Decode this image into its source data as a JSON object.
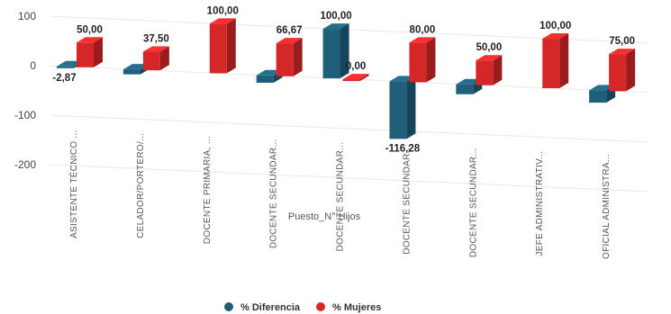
{
  "chart_data": {
    "type": "bar",
    "title": "",
    "xlabel": "Puesto_N° Hijos",
    "ylabel": "",
    "ylim": [
      -200,
      200
    ],
    "yticks": [
      200,
      100,
      0,
      -100,
      -200
    ],
    "grid": false,
    "legend_position": "bottom",
    "categories": [
      "ASISTENTE TÉCNICO ...",
      "CELADOR/PORTERO/...",
      "DOCENTE PRIMARIA, ...",
      "DOCENTE SECUNDAR...",
      "DOCENTE SECUNDAR...",
      "DOCENTE SECUNDAR...",
      "DOCENTE SECUNDAR...",
      "JEFE ADMINISTRATIV...",
      "OFICIAL ADMINISTRA..."
    ],
    "series": [
      {
        "name": "% Diferencia",
        "color": "#1f5f7a",
        "values": [
          -2.87,
          -10,
          null,
          -15,
          100,
          -116.28,
          -20,
          null,
          -25
        ],
        "labels": [
          "-2,87",
          "",
          "",
          "",
          "100,00",
          "-116,28",
          "",
          "",
          ""
        ]
      },
      {
        "name": "% Mujeres",
        "color": "#d62728",
        "values": [
          50,
          37.5,
          100,
          66.67,
          0,
          80,
          50,
          100,
          75
        ],
        "labels": [
          "50,00",
          "37,50",
          "100,00",
          "66,67",
          "0,00",
          "80,00",
          "50,00",
          "100,00",
          "75,00"
        ]
      }
    ]
  }
}
